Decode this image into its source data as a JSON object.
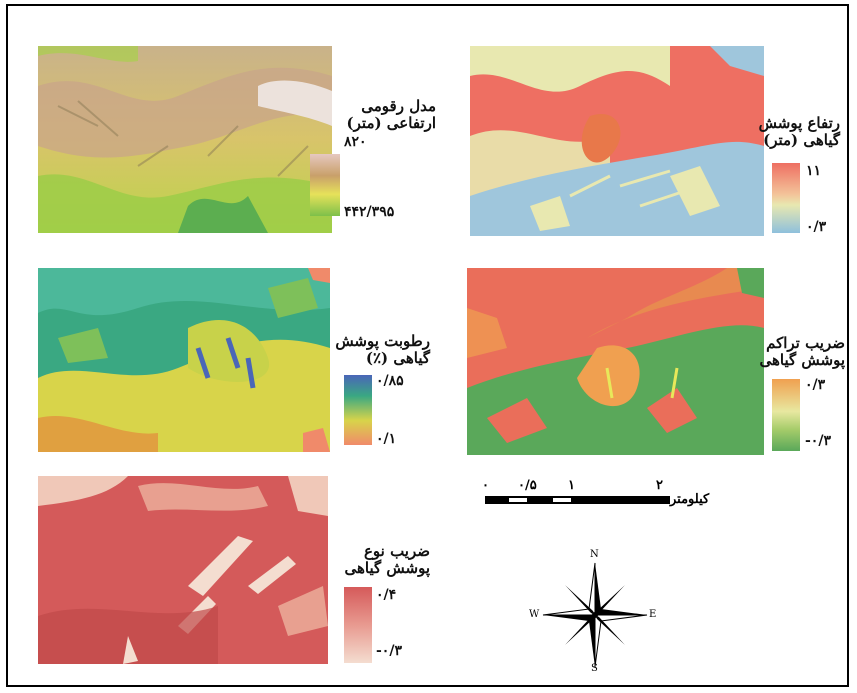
{
  "colors": {
    "dem_high": "#e6c8c0",
    "dem_low": "#7ec04a",
    "veg_height_high": "#ee6f62",
    "veg_height_low": "#8ec0dc",
    "moisture_high": "#4a66b8",
    "moisture_low": "#f08a6a",
    "density_high": "#f0a050",
    "density_low": "#5aa85a",
    "type_high": "#d55a5a",
    "type_low": "#f4ddd0"
  },
  "legends": {
    "dem": {
      "title_line1": "مدل رقومی",
      "title_line2": "ارتفاعی (متر)",
      "max": "۸۲۰",
      "min": "۴۴۲/۳۹۵"
    },
    "veg_height": {
      "title_line1": "رتفاع پوشش",
      "title_line2": "گیاهی (متر)",
      "max": "۱۱",
      "min": "۰/۳"
    },
    "moisture": {
      "title_line1": "رطوبت پوشش",
      "title_line2": "گیاهی (٪)",
      "max": "۰/۸۵",
      "min": "۰/۱"
    },
    "density": {
      "title_line1": "ضریب تراکم",
      "title_line2": "پوشش گیاهی",
      "max": "۰/۳",
      "min": "-۰/۳"
    },
    "veg_type": {
      "title_line1": "ضریب نوع",
      "title_line2": "پوشش گیاهی",
      "max": "۰/۴",
      "min": "-۰/۳"
    }
  },
  "scale": {
    "ticks": [
      "۰",
      "۰/۵",
      "۱",
      "۲"
    ],
    "unit": "کیلومتر"
  },
  "north_arrow": {
    "n": "N",
    "s": "S",
    "e": "E",
    "w": "W"
  }
}
